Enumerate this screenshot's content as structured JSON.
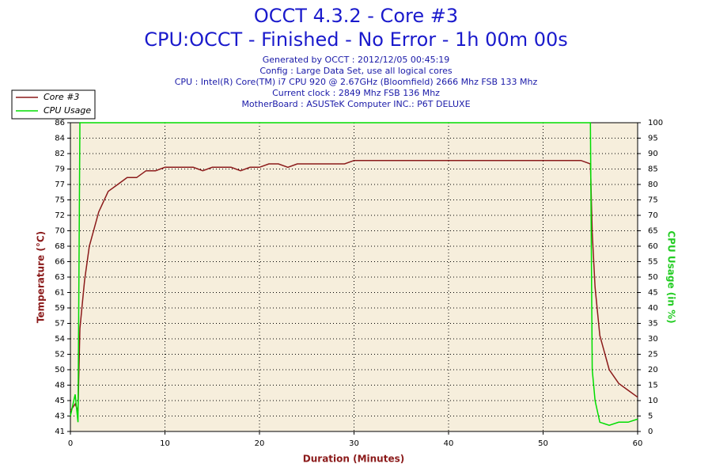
{
  "chart_data": {
    "type": "line",
    "title": "OCCT 4.3.2 - Core #3",
    "subtitle": "CPU:OCCT - Finished - No Error - 1h 00m 00s",
    "info": [
      "Generated by OCCT : 2012/12/05 00:45:19",
      "Config : Large Data Set, use all logical cores",
      "CPU : Intel(R) Core(TM) i7 CPU 920 @ 2.67GHz (Bloomfield) 2666 Mhz FSB 133 Mhz",
      "Current clock : 2849 Mhz FSB 136 Mhz",
      "MotherBoard : ASUSTeK Computer INC.: P6T DELUXE"
    ],
    "x_label": "Duration (Minutes)",
    "y_label": "Temperature (°C)",
    "y2_label": "CPU Usage (in %)",
    "x": [
      0,
      0.5,
      0.8,
      1,
      1.5,
      2,
      3,
      4,
      5,
      6,
      7,
      8,
      9,
      10,
      11,
      12,
      13,
      14,
      15,
      16,
      17,
      18,
      19,
      20,
      21,
      22,
      23,
      24,
      25,
      26,
      27,
      28,
      29,
      30,
      31,
      32,
      33,
      34,
      35,
      36,
      37,
      38,
      39,
      40,
      41,
      42,
      43,
      44,
      45,
      46,
      47,
      48,
      49,
      50,
      51,
      52,
      53,
      54,
      55,
      55.2,
      55.5,
      56,
      57,
      58,
      59,
      60
    ],
    "series": [
      {
        "name": "Core #3",
        "color": "#8b1a1a",
        "axis": "y",
        "values": [
          44,
          45,
          44,
          56,
          63,
          68,
          73,
          76,
          77,
          78,
          78,
          79,
          79,
          79.5,
          79.5,
          79.5,
          79.5,
          79,
          79.5,
          79.5,
          79.5,
          79,
          79.5,
          79.5,
          80,
          80,
          79.5,
          80,
          80,
          80,
          80,
          80,
          80,
          80.5,
          80.5,
          80.5,
          80.5,
          80.5,
          80.5,
          80.5,
          80.5,
          80.5,
          80.5,
          80.5,
          80.5,
          80.5,
          80.5,
          80.5,
          80.5,
          80.5,
          80.5,
          80.5,
          80.5,
          80.5,
          80.5,
          80.5,
          80.5,
          80.5,
          80,
          70,
          62,
          55,
          50,
          48,
          47,
          46
        ]
      },
      {
        "name": "CPU Usage",
        "color": "#00dd00",
        "axis": "y2",
        "values": [
          5,
          12,
          3,
          100,
          100,
          100,
          100,
          100,
          100,
          100,
          100,
          100,
          100,
          100,
          100,
          100,
          100,
          100,
          100,
          100,
          100,
          100,
          100,
          100,
          100,
          100,
          100,
          100,
          100,
          100,
          100,
          100,
          100,
          100,
          100,
          100,
          100,
          100,
          100,
          100,
          100,
          100,
          100,
          100,
          100,
          100,
          100,
          100,
          100,
          100,
          100,
          100,
          100,
          100,
          100,
          100,
          100,
          100,
          100,
          20,
          10,
          3,
          2,
          3,
          3,
          4
        ]
      }
    ],
    "xlim": [
      0,
      60
    ],
    "xticks": [
      0,
      10,
      20,
      30,
      40,
      50,
      60
    ],
    "ylim": [
      41,
      86
    ],
    "yticks": [
      41,
      {
        "value": 43.25,
        "label": "43"
      },
      {
        "value": 45.5,
        "label": "45"
      },
      {
        "value": 47.75,
        "label": "48"
      },
      50,
      {
        "value": 52.25,
        "label": "52"
      },
      {
        "value": 54.5,
        "label": "54"
      },
      {
        "value": 56.75,
        "label": "57"
      },
      59,
      {
        "value": 61.25,
        "label": "61"
      },
      {
        "value": 63.5,
        "label": "63"
      },
      {
        "value": 65.75,
        "label": "66"
      },
      68,
      {
        "value": 70.25,
        "label": "70"
      },
      {
        "value": 72.5,
        "label": "72"
      },
      {
        "value": 74.75,
        "label": "75"
      },
      77,
      {
        "value": 79.25,
        "label": "79"
      },
      {
        "value": 81.5,
        "label": "82"
      },
      {
        "value": 83.75,
        "label": "84"
      },
      86
    ],
    "y2lim": [
      0,
      100
    ],
    "y2ticks": [
      0,
      5,
      10,
      15,
      20,
      25,
      30,
      35,
      40,
      45,
      50,
      55,
      60,
      65,
      70,
      75,
      80,
      85,
      90,
      95,
      100
    ],
    "grid": true,
    "legend": "top-left"
  }
}
